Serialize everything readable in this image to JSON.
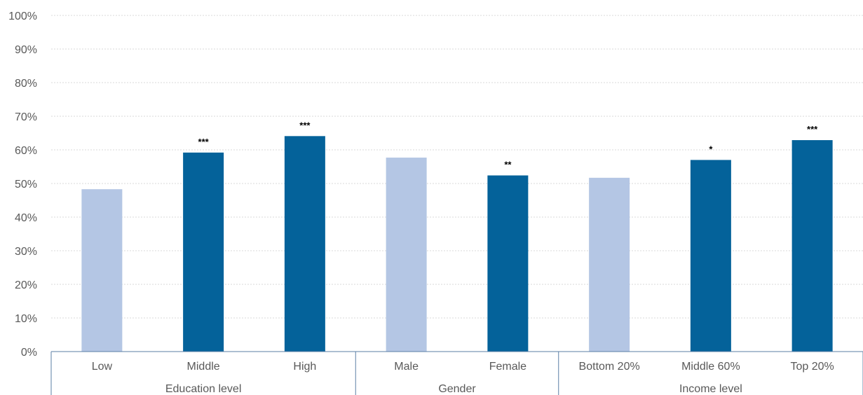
{
  "chart_data": {
    "type": "bar",
    "categories": [
      "Low",
      "Middle",
      "High",
      "Male",
      "Female",
      "Bottom 20%",
      "Middle 60%",
      "Top 20%"
    ],
    "values": [
      48.3,
      59.2,
      64.1,
      57.7,
      52.4,
      51.7,
      57.0,
      62.9
    ],
    "significance": [
      "",
      "***",
      "***",
      "",
      "**",
      "",
      "*",
      "***"
    ],
    "reference": [
      true,
      false,
      false,
      true,
      false,
      true,
      false,
      false
    ],
    "groups": [
      {
        "label": "Education level",
        "categories": [
          "Low",
          "Middle",
          "High"
        ]
      },
      {
        "label": "Gender",
        "categories": [
          "Male",
          "Female"
        ]
      },
      {
        "label": "Income level",
        "categories": [
          "Bottom 20%",
          "Middle 60%",
          "Top 20%"
        ]
      }
    ],
    "y_ticks": [
      "0%",
      "10%",
      "20%",
      "30%",
      "40%",
      "50%",
      "60%",
      "70%",
      "80%",
      "90%",
      "100%"
    ],
    "ylim": [
      0,
      100
    ],
    "grid": true,
    "colors": {
      "reference": "#b4c6e4",
      "main": "#04629a"
    }
  }
}
